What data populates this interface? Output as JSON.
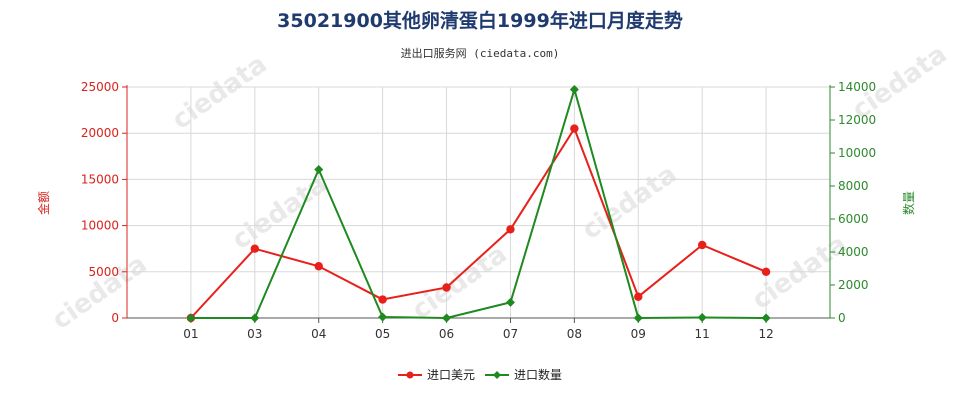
{
  "chart_data": {
    "type": "line",
    "title": "35021900其他卵清蛋白1999年进口月度走势",
    "subtitle": "进出口服务网 (ciedata.com)",
    "categories": [
      "01",
      "03",
      "04",
      "05",
      "06",
      "07",
      "08",
      "09",
      "11",
      "12"
    ],
    "left_axis": {
      "label": "金额",
      "range": [
        0,
        25000
      ],
      "ticks": [
        "0",
        "5000",
        "10000",
        "15000",
        "20000",
        "25000"
      ]
    },
    "right_axis": {
      "label": "数量",
      "range": [
        0,
        14000
      ],
      "ticks": [
        "0",
        "2000",
        "4000",
        "6000",
        "8000",
        "10000",
        "12000",
        "14000"
      ]
    },
    "series": [
      {
        "name": "进口美元",
        "axis": "left",
        "color": "#e8201a",
        "marker": "circle",
        "values": [
          0,
          7500,
          5600,
          2000,
          3300,
          9600,
          20500,
          2300,
          7900,
          5000
        ]
      },
      {
        "name": "进口数量",
        "axis": "right",
        "color": "#1f8a1f",
        "marker": "diamond",
        "values": [
          0,
          0,
          9000,
          60,
          0,
          950,
          13850,
          0,
          30,
          0
        ]
      }
    ],
    "grid": true,
    "legend": "bottom-center"
  }
}
